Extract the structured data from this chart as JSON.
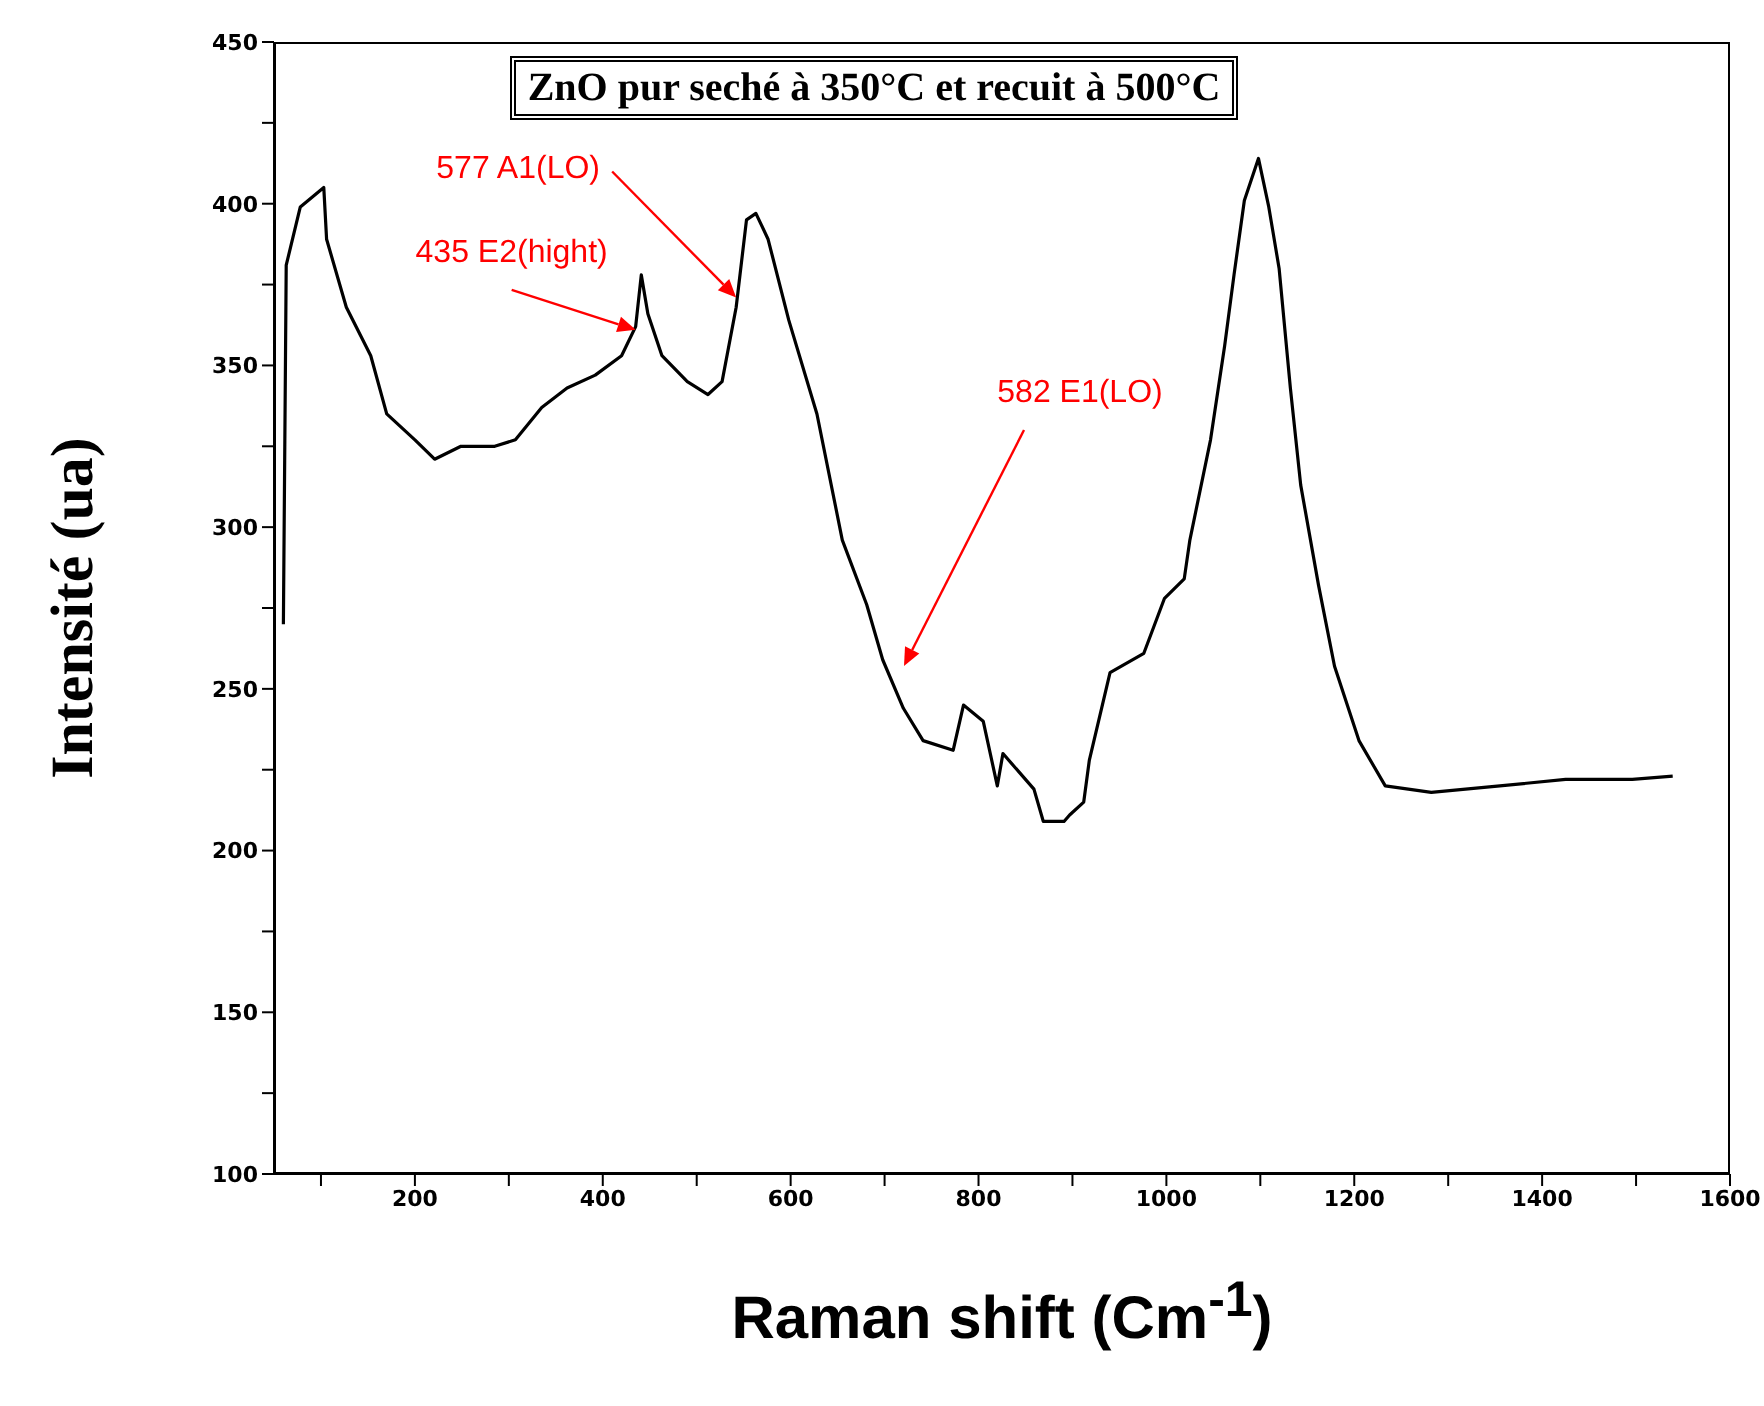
{
  "chart_data": {
    "type": "line",
    "title": "ZnO pur seché à 350°C et recuit à 500°C",
    "xlabel": "Raman shift (Cm$^{-1}$)",
    "ylabel": "Intensité (ua)",
    "x": [
      60,
      63,
      78,
      103,
      106,
      127,
      153,
      170,
      200,
      221,
      249,
      285,
      307,
      335,
      362,
      392,
      420,
      435,
      441,
      448,
      463,
      490,
      512,
      527,
      542,
      553,
      563,
      576,
      598,
      628,
      655,
      681,
      698,
      720,
      741,
      773,
      784,
      805,
      820,
      826,
      859,
      869,
      891,
      897,
      912,
      918,
      940,
      976,
      998,
      1019,
      1025,
      1047,
      1062,
      1072,
      1083,
      1098,
      1109,
      1120,
      1132,
      1143,
      1162,
      1179,
      1205,
      1233,
      1282,
      1355,
      1425,
      1496,
      1539
    ],
    "series": [
      {
        "color": "#000000",
        "values": [
          270,
          381,
          399,
          405,
          389,
          368,
          353,
          335,
          327,
          321,
          325,
          325,
          327,
          337,
          343,
          347,
          353,
          362,
          378,
          366,
          353,
          345,
          341,
          345,
          368,
          395,
          397,
          389,
          364,
          335,
          296,
          276,
          259,
          244,
          234,
          231,
          245,
          240,
          220,
          230,
          219,
          209,
          209,
          211,
          215,
          228,
          255,
          261,
          278,
          284,
          296,
          327,
          356,
          378,
          401,
          414,
          399,
          380,
          343,
          313,
          282,
          257,
          234,
          220,
          218,
          220,
          222,
          222,
          223
        ]
      }
    ],
    "xlim": [
      50,
      1600
    ],
    "xticks": [
      {
        "value": 100,
        "label": null
      },
      200,
      {
        "value": 300,
        "label": null
      },
      400,
      {
        "value": 500,
        "label": null
      },
      600,
      {
        "value": 700,
        "label": null
      },
      800,
      {
        "value": 900,
        "label": null
      },
      1000,
      {
        "value": 1100,
        "label": null
      },
      1200,
      {
        "value": 1300,
        "label": null
      },
      1400,
      {
        "value": 1500,
        "label": null
      },
      1600
    ],
    "ylim": [
      100,
      450
    ],
    "yticks": [
      100,
      {
        "value": 125,
        "label": null
      },
      150,
      {
        "value": 175,
        "label": null
      },
      200,
      {
        "value": 225,
        "label": null
      },
      250,
      {
        "value": 275,
        "label": null
      },
      300,
      {
        "value": 325,
        "label": null
      },
      350,
      {
        "value": 375,
        "label": null
      },
      400,
      {
        "value": 425,
        "label": null
      },
      450
    ],
    "annotations": [
      {
        "text": "577 A1(LO)",
        "x": 542,
        "y": 371
      },
      {
        "text": "435 E2(hight)",
        "x": 435,
        "y": 361
      },
      "582 E1(LO)"
    ],
    "grid": false,
    "legend": false,
    "marker": "none",
    "line_style": "solid"
  }
}
